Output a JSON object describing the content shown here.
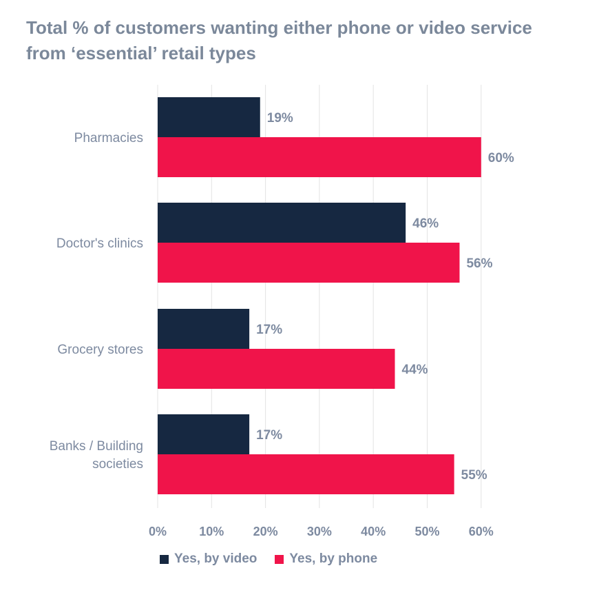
{
  "title_lines": [
    "Total % of customers wanting either phone or video service",
    "from ‘essential’ retail types"
  ],
  "chart_data": {
    "type": "bar",
    "orientation": "horizontal",
    "categories": [
      "Pharmacies",
      "Doctor's clinics",
      "Grocery stores",
      "Banks / Building societies"
    ],
    "category_lines": [
      [
        "Pharmacies"
      ],
      [
        "Doctor's clinics"
      ],
      [
        "Grocery stores"
      ],
      [
        "Banks / Building",
        "societies"
      ]
    ],
    "series": [
      {
        "name": "Yes, by video",
        "values": [
          19,
          46,
          17,
          17
        ],
        "labels": [
          "19%",
          "46%",
          "17%",
          "17%"
        ],
        "color": "#162841"
      },
      {
        "name": "Yes, by phone",
        "values": [
          60,
          56,
          44,
          55
        ],
        "labels": [
          "60%",
          "56%",
          "44%",
          "55%"
        ],
        "color": "#f0144a"
      }
    ],
    "xticks": [
      "0%",
      "10%",
      "20%",
      "30%",
      "40%",
      "50%",
      "60%"
    ],
    "xtick_values": [
      0,
      10,
      20,
      30,
      40,
      50,
      60
    ],
    "xlim": [
      0,
      68
    ],
    "grid": true,
    "legend_position": "bottom"
  }
}
